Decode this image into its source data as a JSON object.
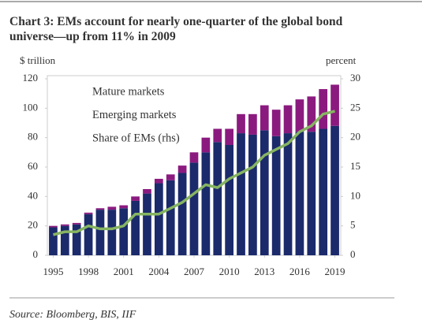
{
  "chart_data": {
    "type": "bar",
    "title": "Chart 3: EMs account for nearly one-quarter of the global bond universe—up from 11% in 2009",
    "y_label": "$ trillion",
    "y2_label": "percent",
    "source": "Source: Bloomberg, BIS, IIF",
    "x": [
      1995,
      1996,
      1997,
      1998,
      1999,
      2000,
      2001,
      2002,
      2003,
      2004,
      2005,
      2006,
      2007,
      2008,
      2009,
      2010,
      2011,
      2012,
      2013,
      2014,
      2015,
      2016,
      2017,
      2018,
      2019
    ],
    "xlim": [
      1994.5,
      2019.5
    ],
    "xticks": [
      1995,
      1998,
      2001,
      2004,
      2007,
      2010,
      2013,
      2016,
      2019
    ],
    "ylim": [
      0,
      120
    ],
    "yticks": [
      0,
      20,
      40,
      60,
      80,
      100,
      120
    ],
    "y2lim": [
      0,
      30
    ],
    "y2ticks": [
      0,
      5,
      10,
      15,
      20,
      25,
      30
    ],
    "legend": "upper left",
    "series": [
      {
        "name": "Mature markets",
        "color": "#1b2a6b",
        "values": [
          19,
          20,
          21,
          28,
          31,
          31,
          32,
          37,
          42,
          49,
          51,
          56,
          63,
          70,
          77,
          75,
          83,
          82,
          85,
          81,
          83,
          84,
          84,
          86,
          88
        ]
      },
      {
        "name": "Emerging markets",
        "color": "#8b1a7f",
        "values": [
          1,
          1,
          1,
          1,
          1,
          2,
          2,
          3,
          3,
          3,
          4,
          5,
          7,
          10,
          9,
          11,
          13,
          14,
          17,
          18,
          19,
          22,
          24,
          27,
          28
        ]
      },
      {
        "name": "Share of EMs (rhs)",
        "color": "#86b461",
        "type": "line",
        "axis": "y2",
        "values": [
          3.5,
          4,
          4,
          5,
          4.5,
          4.5,
          5,
          7,
          7,
          7,
          8,
          9,
          10.5,
          12,
          11.5,
          13,
          14,
          15,
          17,
          18,
          19,
          21,
          22,
          24,
          24.5
        ]
      }
    ]
  }
}
